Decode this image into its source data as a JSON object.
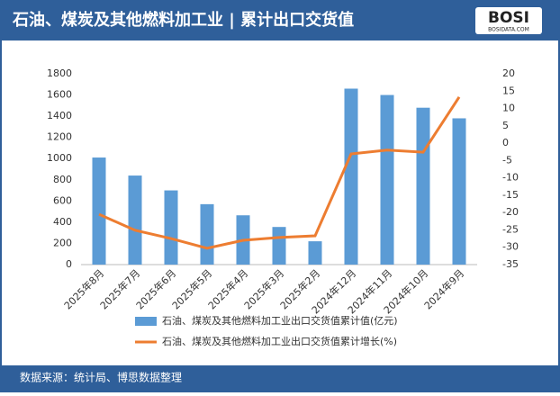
{
  "header": {
    "title": "石油、煤炭及其他燃料加工业 | 累计出口交货值",
    "logo": "BOSI",
    "logo_sub": "BOSIDATA.COM"
  },
  "footer": {
    "source": "数据来源：统计局、博思数据整理"
  },
  "chart_data": {
    "type": "bar-line",
    "categories": [
      "2025年8月",
      "2025年7月",
      "2025年6月",
      "2025年5月",
      "2025年4月",
      "2025年3月",
      "2025年2月",
      "2024年12月",
      "2024年11月",
      "2024年10月",
      "2024年9月"
    ],
    "series": [
      {
        "name": "石油、煤炭及其他燃料加工业出口交货值累计值(亿元)",
        "type": "bar",
        "color": "#5b9bd5",
        "values": [
          1010,
          840,
          700,
          570,
          465,
          355,
          220,
          1660,
          1600,
          1480,
          1380
        ]
      },
      {
        "name": "石油、煤炭及其他燃料加工业出口交货值累计增长(%)",
        "type": "line",
        "axis": "y2",
        "color": "#ed7d31",
        "values": [
          -20.5,
          -25.1,
          -27.5,
          -30.3,
          -28,
          -27.2,
          -26.7,
          -3.1,
          -2,
          -2.6,
          13.3
        ]
      }
    ],
    "ylim": [
      0,
      1800
    ],
    "yticks": [
      0,
      200,
      400,
      600,
      800,
      1000,
      1200,
      1400,
      1600,
      1800
    ],
    "y2lim": [
      -35,
      20
    ],
    "y2ticks": [
      -35,
      -30,
      -25,
      -20,
      -15,
      -10,
      -5,
      0,
      5,
      10,
      15,
      20
    ],
    "grid": false
  }
}
